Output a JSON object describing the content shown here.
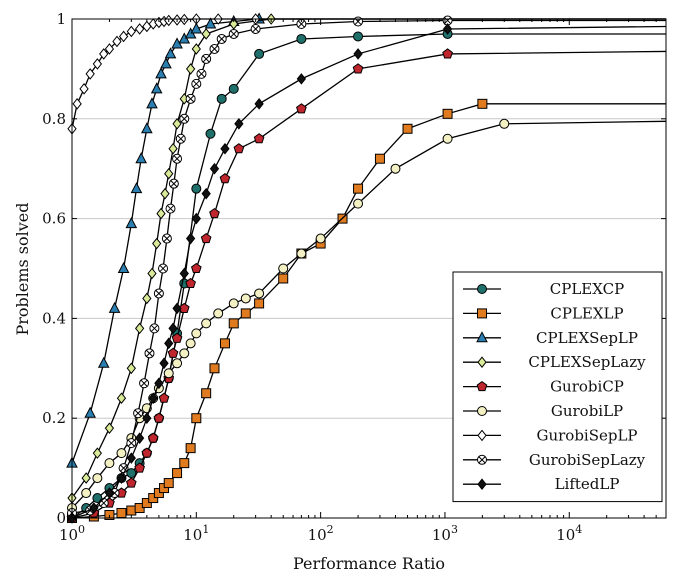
{
  "chart_data": {
    "type": "line",
    "xlabel": "Performance Ratio",
    "ylabel": "Problems solved",
    "xscale": "log",
    "xlim": [
      1,
      60000
    ],
    "ylim": [
      0,
      1
    ],
    "grid": "horizontal",
    "legend_position": "bottom-right",
    "x_ticks": [
      {
        "value": 1,
        "base": "10",
        "exp": "0"
      },
      {
        "value": 10,
        "base": "10",
        "exp": "1"
      },
      {
        "value": 100,
        "base": "10",
        "exp": "2"
      },
      {
        "value": 1000,
        "base": "10",
        "exp": "3"
      },
      {
        "value": 10000,
        "base": "10",
        "exp": "4"
      }
    ],
    "y_ticks": [
      {
        "value": 0,
        "label": "0"
      },
      {
        "value": 0.2,
        "label": "0.2"
      },
      {
        "value": 0.4,
        "label": "0.4"
      },
      {
        "value": 0.6,
        "label": "0.6"
      },
      {
        "value": 0.8,
        "label": "0.8"
      },
      {
        "value": 1,
        "label": "1"
      }
    ],
    "series": [
      {
        "name": "CPLEXCP",
        "marker": "circle",
        "color": "#1f6f6b",
        "x": [
          1,
          1.3,
          1.6,
          2,
          2.5,
          3,
          3.5,
          4,
          4.5,
          5,
          6,
          7,
          8,
          10,
          13,
          16,
          20,
          32,
          70,
          200,
          1050,
          60000
        ],
        "y": [
          0,
          0.02,
          0.04,
          0.06,
          0.08,
          0.09,
          0.11,
          0.13,
          0.16,
          0.2,
          0.28,
          0.37,
          0.47,
          0.66,
          0.77,
          0.84,
          0.86,
          0.93,
          0.96,
          0.965,
          0.97,
          0.97
        ]
      },
      {
        "name": "CPLEXLP",
        "marker": "square",
        "color": "#e07b20",
        "x": [
          1,
          1.5,
          2,
          2.5,
          3,
          3.5,
          4,
          4.5,
          5,
          5.5,
          6,
          7,
          8,
          9,
          10,
          12,
          14,
          17,
          20,
          25,
          32,
          50,
          70,
          100,
          150,
          200,
          300,
          500,
          1050,
          2000,
          60000
        ],
        "y": [
          0,
          0.003,
          0.006,
          0.01,
          0.015,
          0.02,
          0.03,
          0.04,
          0.05,
          0.06,
          0.07,
          0.09,
          0.11,
          0.14,
          0.2,
          0.25,
          0.3,
          0.35,
          0.39,
          0.41,
          0.43,
          0.48,
          0.53,
          0.55,
          0.6,
          0.66,
          0.72,
          0.78,
          0.81,
          0.83,
          0.83
        ]
      },
      {
        "name": "CPLEXSepLP",
        "marker": "triangle",
        "color": "#2a7fb0",
        "x": [
          1,
          1.4,
          1.8,
          2.2,
          2.6,
          3,
          3.3,
          3.6,
          4,
          4.4,
          4.8,
          5.2,
          5.7,
          6.2,
          7,
          8,
          9,
          10,
          13,
          20,
          32,
          60000
        ],
        "y": [
          0.11,
          0.21,
          0.31,
          0.42,
          0.5,
          0.59,
          0.66,
          0.72,
          0.78,
          0.83,
          0.86,
          0.89,
          0.91,
          0.93,
          0.95,
          0.96,
          0.97,
          0.98,
          0.99,
          0.995,
          1.0,
          1.0
        ]
      },
      {
        "name": "CPLEXSepLazy",
        "marker": "diamond",
        "color": "#d9ea98",
        "x": [
          1,
          1.3,
          1.6,
          2,
          2.5,
          3,
          3.5,
          4,
          4.4,
          4.8,
          5.2,
          5.6,
          6,
          6.5,
          7,
          8,
          9,
          10,
          12,
          20,
          40,
          60000
        ],
        "y": [
          0.04,
          0.08,
          0.13,
          0.18,
          0.24,
          0.3,
          0.38,
          0.44,
          0.49,
          0.55,
          0.61,
          0.65,
          0.69,
          0.74,
          0.79,
          0.84,
          0.9,
          0.94,
          0.97,
          0.99,
          1.0,
          1.0
        ]
      },
      {
        "name": "GurobiCP",
        "marker": "pentagon",
        "color": "#c0262d",
        "x": [
          1,
          1.5,
          2,
          2.5,
          3,
          3.5,
          4,
          4.5,
          5,
          5.5,
          6,
          6.5,
          7,
          8,
          9,
          10,
          12,
          14,
          17,
          22,
          32,
          70,
          200,
          1050,
          60000
        ],
        "y": [
          0,
          0.01,
          0.03,
          0.05,
          0.07,
          0.1,
          0.13,
          0.16,
          0.2,
          0.24,
          0.28,
          0.33,
          0.36,
          0.42,
          0.47,
          0.5,
          0.56,
          0.61,
          0.68,
          0.74,
          0.76,
          0.82,
          0.9,
          0.93,
          0.935
        ]
      },
      {
        "name": "GurobiLP",
        "marker": "circle",
        "color": "#f3f0c4",
        "x": [
          1,
          1.3,
          1.6,
          2,
          2.5,
          3,
          3.5,
          4,
          4.5,
          5,
          6,
          7,
          8,
          9,
          10,
          12,
          15,
          20,
          25,
          32,
          50,
          70,
          100,
          200,
          400,
          1050,
          3000,
          60000
        ],
        "y": [
          0.02,
          0.05,
          0.08,
          0.11,
          0.13,
          0.16,
          0.2,
          0.22,
          0.24,
          0.26,
          0.29,
          0.31,
          0.33,
          0.35,
          0.37,
          0.39,
          0.41,
          0.43,
          0.44,
          0.45,
          0.5,
          0.53,
          0.56,
          0.63,
          0.7,
          0.76,
          0.79,
          0.795
        ]
      },
      {
        "name": "GurobiSepLP",
        "marker": "diamond",
        "color": "#ffffff",
        "x": [
          1,
          1.1,
          1.25,
          1.4,
          1.6,
          1.8,
          2,
          2.3,
          2.6,
          3,
          3.5,
          4,
          4.5,
          5,
          5.5,
          6,
          7,
          8,
          10,
          15,
          30,
          60000
        ],
        "y": [
          0.78,
          0.83,
          0.86,
          0.89,
          0.91,
          0.93,
          0.94,
          0.955,
          0.965,
          0.975,
          0.98,
          0.985,
          0.99,
          0.993,
          0.995,
          0.997,
          0.998,
          0.999,
          1.0,
          1.0,
          1.0,
          1.0
        ]
      },
      {
        "name": "GurobiSepLazy",
        "marker": "otimes",
        "color": "#ffffff",
        "x": [
          1,
          1.4,
          1.8,
          2.2,
          2.6,
          3,
          3.4,
          3.8,
          4.2,
          4.6,
          5,
          5.4,
          5.8,
          6.2,
          6.6,
          7,
          7.5,
          8,
          9,
          10,
          11,
          12,
          14,
          16,
          20,
          30,
          70,
          200,
          1050,
          60000
        ],
        "y": [
          0.01,
          0.015,
          0.03,
          0.05,
          0.1,
          0.15,
          0.21,
          0.27,
          0.33,
          0.38,
          0.45,
          0.5,
          0.56,
          0.62,
          0.67,
          0.72,
          0.76,
          0.8,
          0.84,
          0.87,
          0.89,
          0.92,
          0.94,
          0.96,
          0.97,
          0.98,
          0.99,
          0.995,
          0.997,
          0.997
        ]
      },
      {
        "name": "LiftedLP",
        "marker": "diamond",
        "color": "#111111",
        "x": [
          1,
          1.5,
          2,
          2.5,
          3,
          3.5,
          4,
          4.5,
          5,
          5.5,
          6,
          6.5,
          7,
          8,
          9,
          10,
          12,
          14,
          17,
          22,
          32,
          70,
          200,
          1050,
          60000
        ],
        "y": [
          0,
          0.02,
          0.05,
          0.08,
          0.12,
          0.16,
          0.2,
          0.24,
          0.27,
          0.31,
          0.35,
          0.38,
          0.42,
          0.49,
          0.56,
          0.6,
          0.65,
          0.7,
          0.74,
          0.79,
          0.83,
          0.88,
          0.93,
          0.98,
          0.985
        ]
      }
    ]
  }
}
